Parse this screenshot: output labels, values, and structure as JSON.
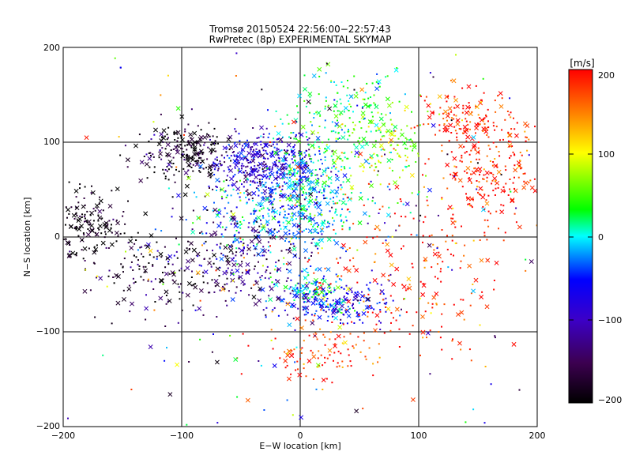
{
  "chart_data": {
    "type": "scatter",
    "title": "Tromsø 20150524 22:56:00−22:57:43",
    "subtitle": "RwPretec (8p) EXPERIMENTAL SKYMAP",
    "xlabel": "E−W location [km]",
    "ylabel": "N−S location [km]",
    "xlim": [
      -200,
      200
    ],
    "ylim": [
      -200,
      200
    ],
    "x_ticks": [
      "−200",
      "−100",
      "0",
      "100",
      "200"
    ],
    "y_ticks": [
      "−200",
      "−100",
      "0",
      "100",
      "200"
    ],
    "grid": true,
    "colorbar": {
      "label": "[m/s]",
      "range": [
        -200,
        200
      ],
      "ticks": [
        "200",
        "100",
        "0",
        "−100",
        "−200"
      ],
      "colormap": [
        "#000000",
        "#3c0050",
        "#3c00c8",
        "#0000ff",
        "#00ffff",
        "#00ff00",
        "#ffff00",
        "#ff8000",
        "#ff0000"
      ]
    },
    "series_clusters": [
      {
        "x": -30,
        "y": 75,
        "spread": [
          22,
          18
        ],
        "velocity": -90,
        "n": 420
      },
      {
        "x": -95,
        "y": 90,
        "spread": [
          18,
          15
        ],
        "velocity": -190,
        "n": 220
      },
      {
        "x": -180,
        "y": 10,
        "spread": [
          15,
          22
        ],
        "velocity": -195,
        "n": 160
      },
      {
        "x": 10,
        "y": 60,
        "spread": [
          20,
          40
        ],
        "velocity": 5,
        "n": 260
      },
      {
        "x": -20,
        "y": 25,
        "spread": [
          35,
          20
        ],
        "velocity": -20,
        "n": 300
      },
      {
        "x": 40,
        "y": 130,
        "spread": [
          22,
          30
        ],
        "velocity": 30,
        "n": 160
      },
      {
        "x": 70,
        "y": 95,
        "spread": [
          22,
          25
        ],
        "velocity": 70,
        "n": 120
      },
      {
        "x": 140,
        "y": 125,
        "spread": [
          20,
          15
        ],
        "velocity": 190,
        "n": 120
      },
      {
        "x": 160,
        "y": 70,
        "spread": [
          22,
          30
        ],
        "velocity": 195,
        "n": 220
      },
      {
        "x": 10,
        "y": -55,
        "spread": [
          10,
          10
        ],
        "velocity": 0,
        "n": 90
      },
      {
        "x": 30,
        "y": -70,
        "spread": [
          25,
          10
        ],
        "velocity": -60,
        "n": 180
      },
      {
        "x": -45,
        "y": -25,
        "spread": [
          30,
          28
        ],
        "velocity": -130,
        "n": 200
      },
      {
        "x": -120,
        "y": -35,
        "spread": [
          30,
          25
        ],
        "velocity": -175,
        "n": 150
      },
      {
        "x": 80,
        "y": -40,
        "spread": [
          45,
          50
        ],
        "velocity": 190,
        "n": 220
      },
      {
        "x": 20,
        "y": -120,
        "spread": [
          25,
          20
        ],
        "velocity": 185,
        "n": 100
      },
      {
        "x": 0,
        "y": 0,
        "spread": [
          120,
          110
        ],
        "velocity": 0,
        "n": 350
      }
    ]
  }
}
